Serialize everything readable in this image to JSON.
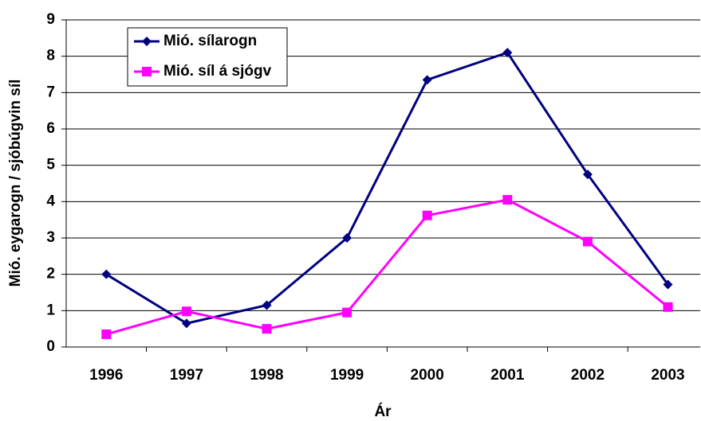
{
  "chart_data": {
    "type": "line",
    "x_label": "Ár",
    "y_label": "Mió. eygarogn / sjóbúgvin síl",
    "categories": [
      "1996",
      "1997",
      "1998",
      "1999",
      "2000",
      "2001",
      "2002",
      "2003"
    ],
    "series": [
      {
        "name": "Mió. sílarogn",
        "color": "#000080",
        "marker": "diamond",
        "values": [
          2.0,
          0.65,
          1.15,
          3.0,
          7.35,
          8.1,
          4.75,
          1.72
        ]
      },
      {
        "name": "Mió. síl á sjógv",
        "color": "#ff00ff",
        "marker": "square",
        "values": [
          0.35,
          0.98,
          0.5,
          0.95,
          3.62,
          4.05,
          2.9,
          1.1
        ]
      }
    ],
    "ylim": [
      0,
      9
    ],
    "yticks": [
      0,
      1,
      2,
      3,
      4,
      5,
      6,
      7,
      8,
      9
    ],
    "grid": true,
    "legend": "upper left"
  }
}
